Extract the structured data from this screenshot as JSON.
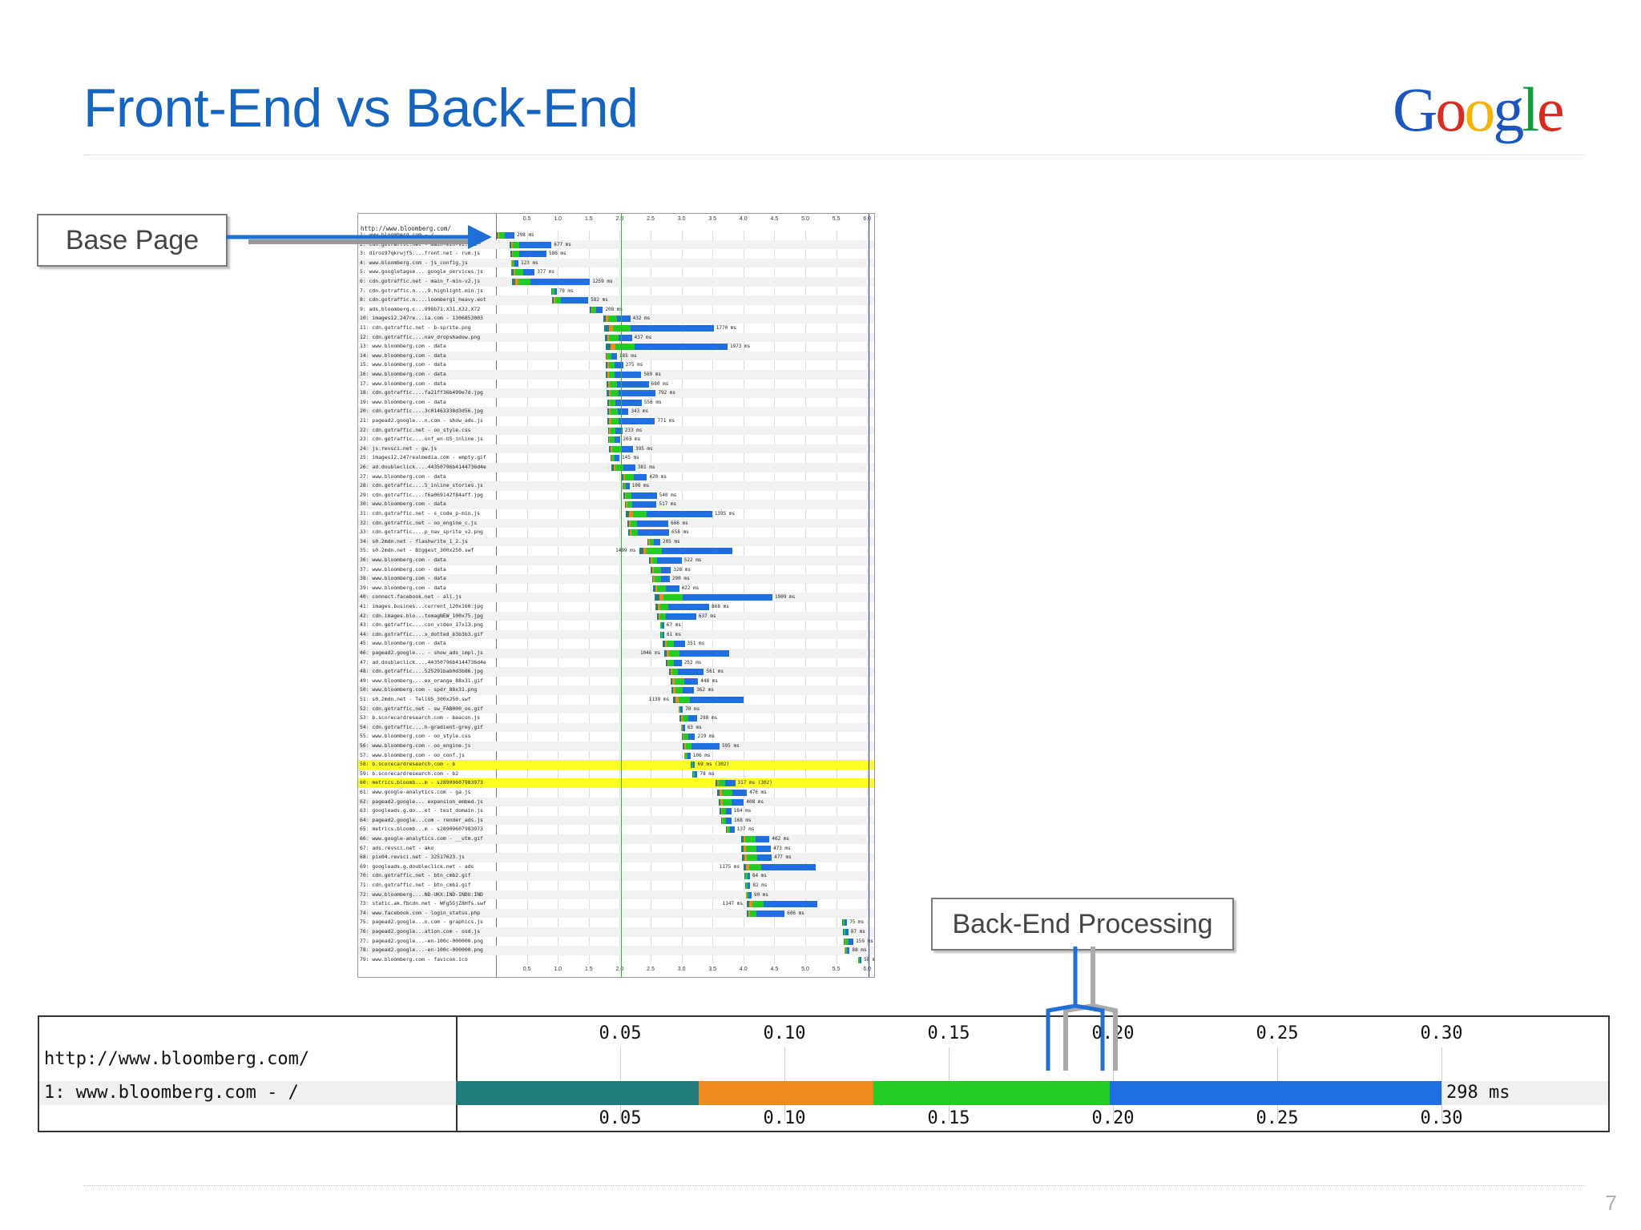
{
  "slide": {
    "title": "Front-End vs Back-End",
    "page_number": "7",
    "logo_text": "Google",
    "logo_colors": [
      "#1a55c0",
      "#d62d20",
      "#f4b400",
      "#1a55c0",
      "#109d3d",
      "#d62d20"
    ]
  },
  "callouts": {
    "base_page": "Base Page",
    "back_end": "Back-End Processing"
  },
  "colors": {
    "dns": "#1f7d7d",
    "connect": "#f08a1c",
    "ttfb": "#22cc22",
    "download": "#1f6fe0",
    "arrow": "#1f6fd6",
    "highlight": "#ffff22"
  },
  "waterfall": {
    "url": "http://www.bloomberg.com/",
    "ticks": [
      "0.5",
      "1.0",
      "1.5",
      "2.0",
      "2.5",
      "3.0",
      "3.5",
      "4.0",
      "4.5",
      "5.0",
      "5.5",
      "6.0"
    ],
    "rows": [
      {
        "label": "1: www.bloomberg.com - /",
        "start": 0.0,
        "dur": 0.298,
        "ms": "298 ms"
      },
      {
        "label": "2: cdn.gotraffic.net - main-min-v2.css",
        "start": 0.22,
        "dur": 0.677,
        "ms": "677 ms"
      },
      {
        "label": "3: d1ros97qkrwjf5....front.net - rum.js",
        "start": 0.23,
        "dur": 0.586,
        "ms": "586 ms"
      },
      {
        "label": "4: www.bloomberg.com - js_config.js",
        "start": 0.24,
        "dur": 0.123,
        "ms": "123 ms"
      },
      {
        "label": "5: www.googletagse... google_services.js",
        "start": 0.25,
        "dur": 0.377,
        "ms": "377 ms"
      },
      {
        "label": "6: cdn.gotraffic.net - main_f-min-v2.js",
        "start": 0.26,
        "dur": 1.259,
        "ms": "1259 ms"
      },
      {
        "label": "7: cdn.gotraffic.n....9.highlight.min.js",
        "start": 0.9,
        "dur": 0.079,
        "ms": "79 ms"
      },
      {
        "label": "8: cdn.gotraffic.n....loomberg1_heavy.eot",
        "start": 0.91,
        "dur": 0.582,
        "ms": "582 ms"
      },
      {
        "label": "9: ads.bloomberg.c...998b71.X31.X32.X72",
        "start": 1.52,
        "dur": 0.208,
        "ms": "208 ms"
      },
      {
        "label": "10: images12.247re...ia.com - 1306853003",
        "start": 1.74,
        "dur": 0.432,
        "ms": "432 ms"
      },
      {
        "label": "11: cdn.gotraffic.net - b-sprite.png",
        "start": 1.75,
        "dur": 1.77,
        "ms": "1770 ms"
      },
      {
        "label": "12: cdn.gotraffic....nav_dropshadow.png",
        "start": 1.76,
        "dur": 0.437,
        "ms": "437 ms"
      },
      {
        "label": "13: www.bloomberg.com - data",
        "start": 1.77,
        "dur": 1.973,
        "ms": "1973 ms"
      },
      {
        "label": "14: www.bloomberg.com - data",
        "start": 1.77,
        "dur": 0.185,
        "ms": "185 ms"
      },
      {
        "label": "15: www.bloomberg.com - data",
        "start": 1.78,
        "dur": 0.275,
        "ms": "275 ms"
      },
      {
        "label": "16: www.bloomberg.com - data",
        "start": 1.78,
        "dur": 0.569,
        "ms": "569 ms"
      },
      {
        "label": "17: www.bloomberg.com - data",
        "start": 1.79,
        "dur": 0.68,
        "ms": "680 ms"
      },
      {
        "label": "18: cdn.gotraffic....fa21ff36b499e7d.jpg",
        "start": 1.79,
        "dur": 0.792,
        "ms": "792 ms"
      },
      {
        "label": "19: www.bloomberg.com - data",
        "start": 1.8,
        "dur": 0.556,
        "ms": "556 ms"
      },
      {
        "label": "20: cdn.gotraffic....3c01463338d3d56.jpg",
        "start": 1.8,
        "dur": 0.343,
        "ms": "343 ms"
      },
      {
        "label": "21: pagead2.google...n.com - show_ads.js",
        "start": 1.8,
        "dur": 0.771,
        "ms": "771 ms"
      },
      {
        "label": "22: cdn.gotraffic.net - oo_style.css",
        "start": 1.81,
        "dur": 0.233,
        "ms": "233 ms"
      },
      {
        "label": "23: cdn.gotraffic....onf_en-US_inline.js",
        "start": 1.81,
        "dur": 0.203,
        "ms": "203 ms"
      },
      {
        "label": "24: js.revsci.net - gw.js",
        "start": 1.82,
        "dur": 0.395,
        "ms": "395 ms"
      },
      {
        "label": "25: images12.247realmedia.com - empty.gif",
        "start": 1.85,
        "dur": 0.145,
        "ms": "145 ms"
      },
      {
        "label": "26: ad.doubleclick....44350796b4144736d4e",
        "start": 1.87,
        "dur": 0.381,
        "ms": "381 ms"
      },
      {
        "label": "27: www.bloomberg.com - data",
        "start": 2.02,
        "dur": 0.42,
        "ms": "420 ms"
      },
      {
        "label": "28: cdn.gotraffic....5_inline_stories.js",
        "start": 2.05,
        "dur": 0.108,
        "ms": "108 ms"
      },
      {
        "label": "29: cdn.gotraffic....f6a069142f84aff.jpg",
        "start": 2.06,
        "dur": 0.54,
        "ms": "540 ms"
      },
      {
        "label": "30: www.bloomberg.com - data",
        "start": 2.08,
        "dur": 0.517,
        "ms": "517 ms"
      },
      {
        "label": "31: cdn.gotraffic.net - s_code_p-min.js",
        "start": 2.1,
        "dur": 1.395,
        "ms": "1395 ms"
      },
      {
        "label": "32: cdn.gotraffic.net - oo_engine_c.js",
        "start": 2.12,
        "dur": 0.666,
        "ms": "666 ms"
      },
      {
        "label": "33: cdn.gotraffic....p_nav_sprite_v2.png",
        "start": 2.14,
        "dur": 0.658,
        "ms": "658 ms"
      },
      {
        "label": "34: s0.2mdn.net - flashwrite_1_2.js",
        "start": 2.45,
        "dur": 0.205,
        "ms": "205 ms"
      },
      {
        "label": "35: s0.2mdn.net - Biggest_300x250.swf",
        "start": 2.32,
        "dur": 1.499,
        "ms": "1499 ms"
      },
      {
        "label": "36: www.bloomberg.com - data",
        "start": 2.48,
        "dur": 0.522,
        "ms": "522 ms"
      },
      {
        "label": "37: www.bloomberg.com - data",
        "start": 2.5,
        "dur": 0.328,
        "ms": "328 ms"
      },
      {
        "label": "38: www.bloomberg.com - data",
        "start": 2.52,
        "dur": 0.29,
        "ms": "290 ms"
      },
      {
        "label": "39: www.bloomberg.com - data",
        "start": 2.54,
        "dur": 0.422,
        "ms": "422 ms"
      },
      {
        "label": "40: connect.facebook.net - all.js",
        "start": 2.56,
        "dur": 1.909,
        "ms": "1909 ms"
      },
      {
        "label": "41: images.busines...current_120x160.jpg",
        "start": 2.58,
        "dur": 0.868,
        "ms": "868 ms"
      },
      {
        "label": "42: cdn.images.blo...tomagNEW_100x75.jpg",
        "start": 2.6,
        "dur": 0.637,
        "ms": "637 ms"
      },
      {
        "label": "43: cdn.gotraffic....con_video_17x13.png",
        "start": 2.65,
        "dur": 0.067,
        "ms": "67 ms"
      },
      {
        "label": "44: cdn.gotraffic....x_dotted_b3b3b3.gif",
        "start": 2.66,
        "dur": 0.061,
        "ms": "61 ms"
      },
      {
        "label": "45: www.bloomberg.com - data",
        "start": 2.7,
        "dur": 0.351,
        "ms": "351 ms"
      },
      {
        "label": "46: pagead2.google... - show_ads_impl.js",
        "start": 2.72,
        "dur": 1.046,
        "ms": "1046 ms"
      },
      {
        "label": "47: ad.doubleclick....44350796b4144736d4e",
        "start": 2.75,
        "dur": 0.252,
        "ms": "252 ms"
      },
      {
        "label": "48: cdn.gotraffic....525291bab0d3b86.jpg",
        "start": 2.8,
        "dur": 0.561,
        "ms": "561 ms"
      },
      {
        "label": "49: www.bloomberg....ex_orange_88x31.gif",
        "start": 2.82,
        "dur": 0.448,
        "ms": "448 ms"
      },
      {
        "label": "50: www.bloomberg.com - spdr_88x31.png",
        "start": 2.84,
        "dur": 0.362,
        "ms": "362 ms"
      },
      {
        "label": "51: s0.2mdn.net - TellUS_300x250.swf",
        "start": 2.86,
        "dur": 1.139,
        "ms": "1139 ms"
      },
      {
        "label": "52: cdn.gotraffic.net - sw_FAB000_oo.gif",
        "start": 2.95,
        "dur": 0.07,
        "ms": "70 ms"
      },
      {
        "label": "53: b.scorecardresearch.com - beacon.js",
        "start": 2.97,
        "dur": 0.288,
        "ms": "288 ms"
      },
      {
        "label": "54: cdn.gotraffic....h-gradient-grey.gif",
        "start": 2.99,
        "dur": 0.063,
        "ms": "63 ms"
      },
      {
        "label": "55: www.bloomberg.com - oo_style.css",
        "start": 3.0,
        "dur": 0.219,
        "ms": "219 ms"
      },
      {
        "label": "56: www.bloomberg.com - oo_engine.js",
        "start": 3.02,
        "dur": 0.595,
        "ms": "595 ms"
      },
      {
        "label": "57: www.bloomberg.com - oo_conf.js",
        "start": 3.04,
        "dur": 0.106,
        "ms": "106 ms"
      },
      {
        "label": "58: b.scorecardresearch.com - b",
        "start": 3.15,
        "dur": 0.069,
        "ms": "69 ms (302)",
        "hl": true
      },
      {
        "label": "59: b.scorecardresearch.com - b2",
        "start": 3.18,
        "dur": 0.078,
        "ms": "78 ms"
      },
      {
        "label": "60: metrics.bloomb...m - s28909607983973",
        "start": 3.55,
        "dur": 0.317,
        "ms": "317 ms (302)",
        "hl": true
      },
      {
        "label": "61: www.google-analytics.com - ga.js",
        "start": 3.58,
        "dur": 0.476,
        "ms": "476 ms"
      },
      {
        "label": "62: pagead2.google... expansion_embed.js",
        "start": 3.6,
        "dur": 0.408,
        "ms": "408 ms"
      },
      {
        "label": "63: googleads.g.do...et - test_domain.js",
        "start": 3.62,
        "dur": 0.184,
        "ms": "184 ms"
      },
      {
        "label": "64: pagead2.google...com - render_ads.js",
        "start": 3.64,
        "dur": 0.168,
        "ms": "168 ms"
      },
      {
        "label": "65: metrics.bloomb...m - s28909607983973",
        "start": 3.72,
        "dur": 0.137,
        "ms": "137 ms"
      },
      {
        "label": "66: www.google-analytics.com - __utm.gif",
        "start": 3.96,
        "dur": 0.462,
        "ms": "462 ms"
      },
      {
        "label": "67: ads.revsci.net - ako",
        "start": 3.97,
        "dur": 0.473,
        "ms": "473 ms"
      },
      {
        "label": "68: pix04.revsci.net - 32517623.js",
        "start": 3.98,
        "dur": 0.477,
        "ms": "477 ms"
      },
      {
        "label": "69: googleads.g.doubleclick.net - ads",
        "start": 4.0,
        "dur": 1.175,
        "ms": "1175 ms"
      },
      {
        "label": "70: cdn.gotraffic.net - btn_cmb2.gif",
        "start": 4.02,
        "dur": 0.084,
        "ms": "84 ms"
      },
      {
        "label": "71: cdn.gotraffic.net - btn_cmb1.gif",
        "start": 4.03,
        "dur": 0.082,
        "ms": "82 ms"
      },
      {
        "label": "72: www.bloomberg....ND-UKX:IND-INDU:IND",
        "start": 4.04,
        "dur": 0.09,
        "ms": "90 ms"
      },
      {
        "label": "73: static.ak.fbcdn.net - WFg5GjZ8Hfs.swf",
        "start": 4.05,
        "dur": 1.147,
        "ms": "1147 ms"
      },
      {
        "label": "74: www.facebook.com - login_status.php",
        "start": 4.06,
        "dur": 0.606,
        "ms": "606 ms"
      },
      {
        "label": "75: pagead2.google...n.com - graphics.js",
        "start": 5.6,
        "dur": 0.075,
        "ms": "75 ms"
      },
      {
        "label": "76: pagead2.google...ation.com - osd.js",
        "start": 5.61,
        "dur": 0.087,
        "ms": "87 ms"
      },
      {
        "label": "77: pagead2.google...-en-100c-000000.png",
        "start": 5.62,
        "dur": 0.159,
        "ms": "159 ms"
      },
      {
        "label": "78: pagead2.google...-en-100c-000000.png",
        "start": 5.63,
        "dur": 0.088,
        "ms": "88 ms"
      },
      {
        "label": "79: www.bloomberg.com - favicon.ico",
        "start": 5.85,
        "dur": 0.058,
        "ms": "58 ms"
      }
    ]
  },
  "detail": {
    "url": "http://www.bloomberg.com/",
    "row_label": "1: www.bloomberg.com - /",
    "ms_label": "298 ms",
    "ticks": [
      "0.05",
      "0.10",
      "0.15",
      "0.20",
      "0.25",
      "0.30"
    ],
    "tick_values": [
      0.05,
      0.1,
      0.15,
      0.2,
      0.25,
      0.3
    ],
    "phases": [
      {
        "phase": "dns",
        "start": 0.0,
        "end": 0.074
      },
      {
        "phase": "connect",
        "start": 0.074,
        "end": 0.127
      },
      {
        "phase": "ttfb",
        "start": 0.127,
        "end": 0.199
      },
      {
        "phase": "download",
        "start": 0.199,
        "end": 0.3
      }
    ]
  }
}
